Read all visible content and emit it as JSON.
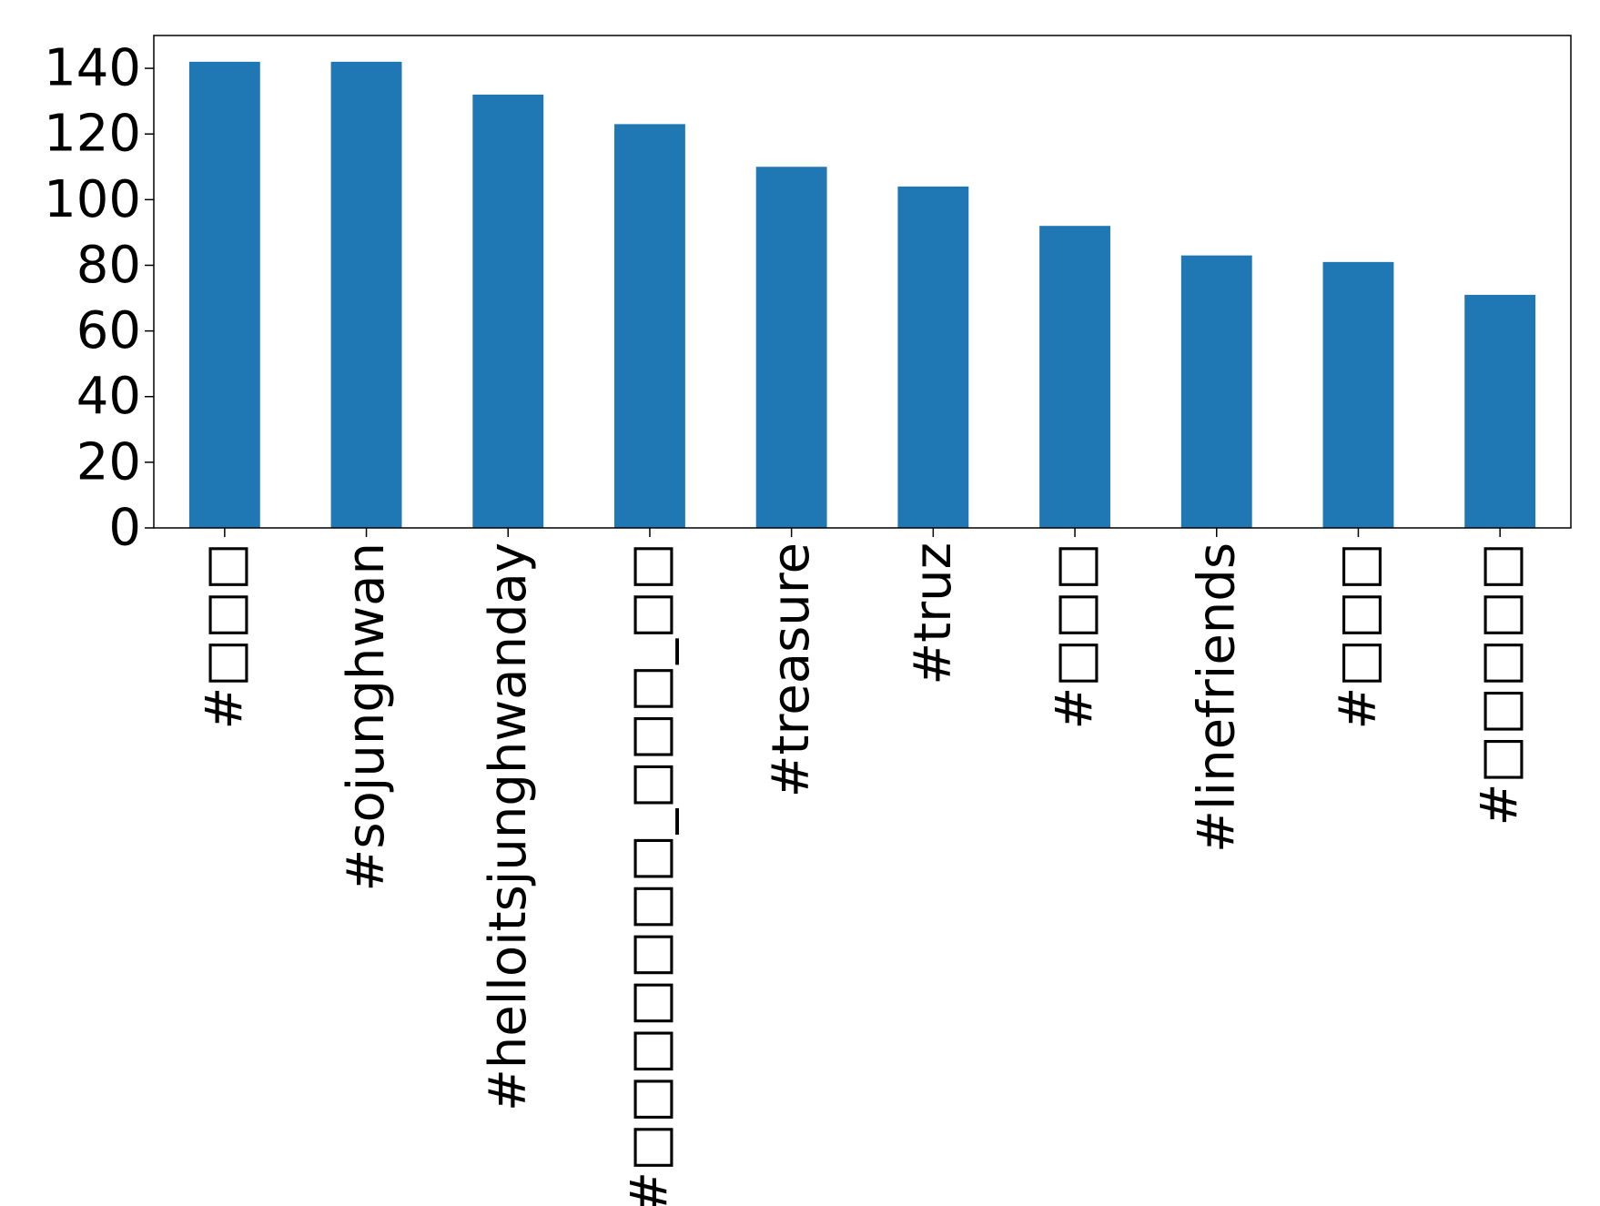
{
  "chart_data": {
    "type": "bar",
    "title": "",
    "xlabel": "",
    "ylabel": "",
    "categories": [
      "#□□□",
      "#sojunghwan",
      "#helloitsjunghwanday",
      "#□□□□□□□_□□□_□□",
      "#treasure",
      "#truz",
      "#□□□",
      "#linefriends",
      "#□□□",
      "#□□□□□"
    ],
    "values": [
      142,
      142,
      132,
      123,
      110,
      104,
      92,
      83,
      81,
      71
    ],
    "ylim": [
      0,
      150
    ],
    "yticks": [
      0,
      20,
      40,
      60,
      80,
      100,
      120,
      140
    ],
    "bar_color": "#1f77b4",
    "grid": false,
    "legend": "none"
  }
}
